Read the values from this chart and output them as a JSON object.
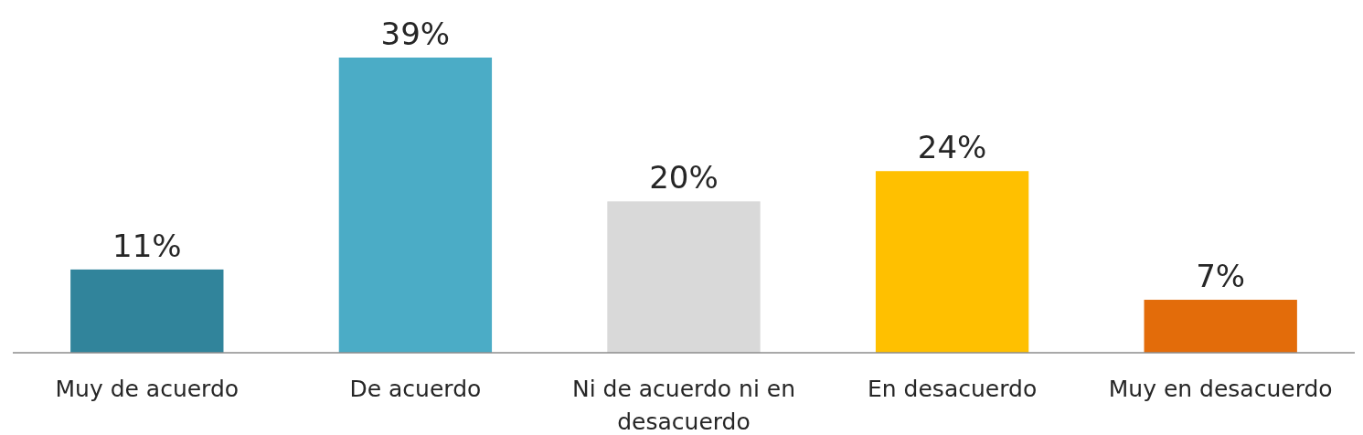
{
  "chart_data": {
    "type": "bar",
    "categories": [
      "Muy de acuerdo",
      "De acuerdo",
      "Ni de acuerdo ni en desacuerdo",
      "En desacuerdo",
      "Muy en desacuerdo"
    ],
    "values": [
      11,
      39,
      20,
      24,
      7
    ],
    "colors": [
      "#31849b",
      "#4bacc6",
      "#d9d9d9",
      "#ffc000",
      "#e36c0a"
    ],
    "value_labels": [
      "11%",
      "39%",
      "20%",
      "24%",
      "7%"
    ]
  }
}
